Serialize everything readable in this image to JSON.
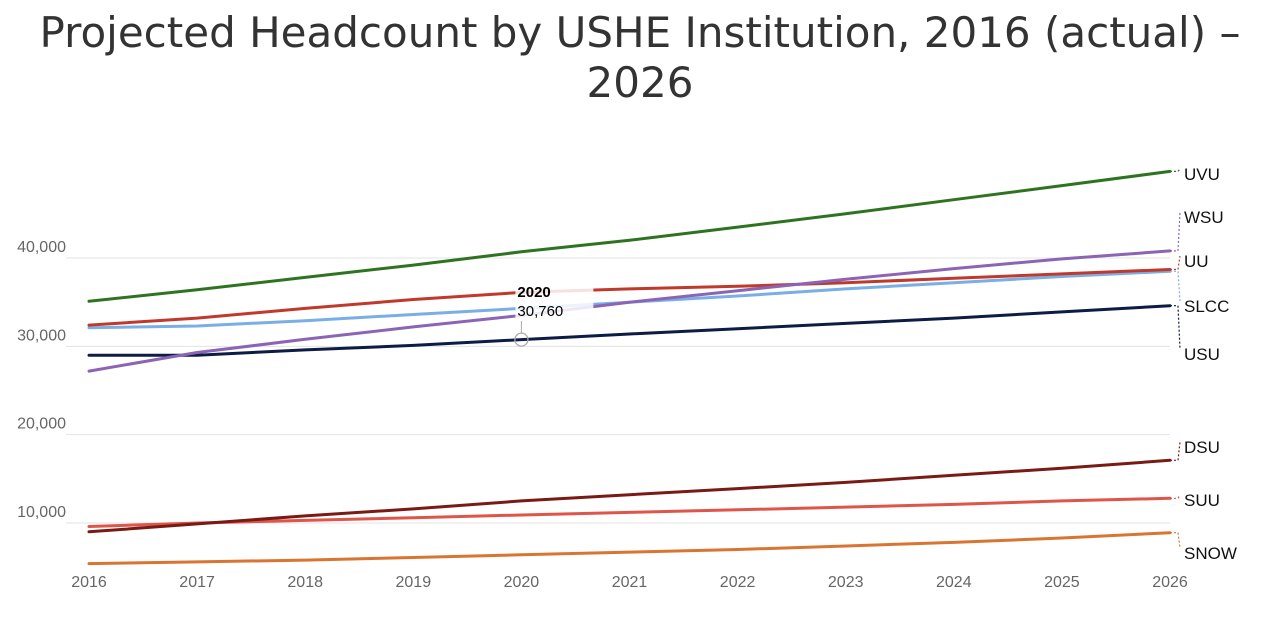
{
  "chart_data": {
    "type": "line",
    "title_line_1": "Projected Headcount by USHE Institution, 2016 (actual) –",
    "title_line_2": "2026",
    "x": [
      "2016",
      "2017",
      "2018",
      "2019",
      "2020",
      "2021",
      "2022",
      "2023",
      "2024",
      "2025",
      "2026"
    ],
    "y_ticks": [
      "10,000",
      "20,000",
      "30,000",
      "40,000"
    ],
    "y_tick_values": [
      10000,
      20000,
      30000,
      40000
    ],
    "ylim": [
      5000,
      47500
    ],
    "grid": "horizontal",
    "legend": "direct labels at right end of each line",
    "series": [
      {
        "name": "UVU",
        "color": "#2e7420",
        "values": [
          35100,
          36400,
          37800,
          39200,
          40700,
          42000,
          43500,
          45000,
          46600,
          48200,
          49800
        ]
      },
      {
        "name": "WSU",
        "color": "#8c64b5",
        "values": [
          27200,
          29300,
          30800,
          32200,
          33500,
          35000,
          36300,
          37600,
          38800,
          39900,
          40800
        ]
      },
      {
        "name": "UU",
        "color": "#c1392b",
        "values": [
          32400,
          33200,
          34300,
          35300,
          36100,
          36500,
          36800,
          37200,
          37700,
          38200,
          38700
        ]
      },
      {
        "name": "SLCC",
        "color": "#7aaee6",
        "values": [
          32100,
          32300,
          32900,
          33600,
          34300,
          35000,
          35700,
          36500,
          37200,
          37900,
          38500
        ]
      },
      {
        "name": "USU",
        "color": "#0d1b45",
        "values": [
          29000,
          29000,
          29600,
          30100,
          30760,
          31400,
          32000,
          32600,
          33200,
          33900,
          34600
        ]
      },
      {
        "name": "DSU",
        "color": "#7a1a14",
        "values": [
          9000,
          9900,
          10800,
          11600,
          12500,
          13200,
          13900,
          14600,
          15400,
          16200,
          17100
        ]
      },
      {
        "name": "SUU",
        "color": "#e0554a",
        "values": [
          9600,
          10000,
          10300,
          10600,
          10900,
          11200,
          11500,
          11800,
          12100,
          12500,
          12800
        ]
      },
      {
        "name": "SNOW",
        "color": "#d97531",
        "values": [
          5400,
          5600,
          5800,
          6100,
          6400,
          6700,
          7000,
          7400,
          7800,
          8300,
          8900
        ]
      }
    ],
    "tooltip": {
      "year": "2020",
      "value": "30,760",
      "series": "USU",
      "year_index": 4,
      "data_value": 30760
    }
  }
}
